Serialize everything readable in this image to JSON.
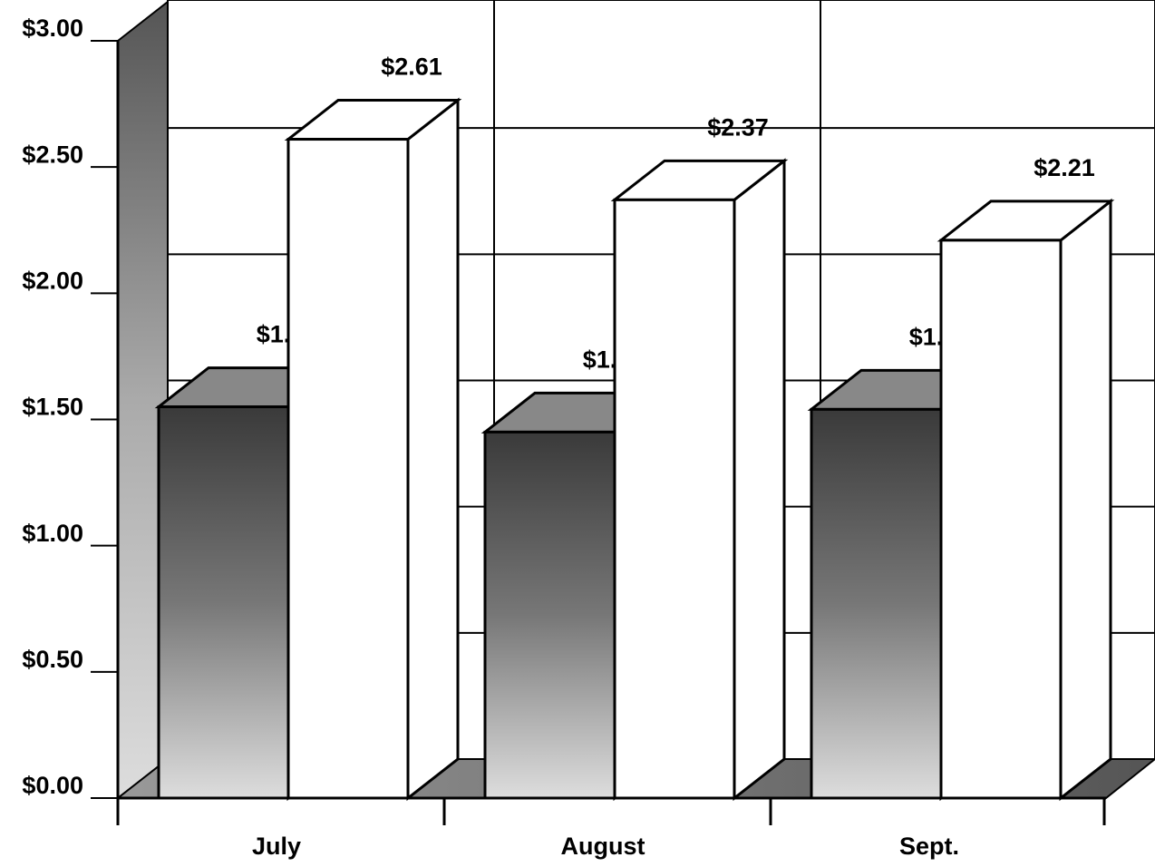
{
  "chart_data": {
    "type": "bar3d",
    "categories": [
      "July",
      "August",
      "Sept."
    ],
    "series": [
      {
        "color": "#3a3a3a",
        "values": [
          1.55,
          1.45,
          1.54
        ],
        "value_labels": [
          "$1.55",
          "$1.45",
          "$1.54"
        ]
      },
      {
        "color": "#ffffff",
        "values": [
          2.61,
          2.37,
          2.21
        ],
        "value_labels": [
          "$2.61",
          "$2.37",
          "$2.21"
        ]
      }
    ],
    "ylim": [
      0,
      3
    ],
    "yticks": [
      {
        "value": 0,
        "label": "$0.00"
      },
      {
        "value": 0.5,
        "label": "$0.50"
      },
      {
        "value": 1,
        "label": "$1.00"
      },
      {
        "value": 1.5,
        "label": "$1.50"
      },
      {
        "value": 2,
        "label": "$2.00"
      },
      {
        "value": 2.5,
        "label": "$2.50"
      },
      {
        "value": 3,
        "label": "$3.00"
      }
    ],
    "grid": true
  }
}
